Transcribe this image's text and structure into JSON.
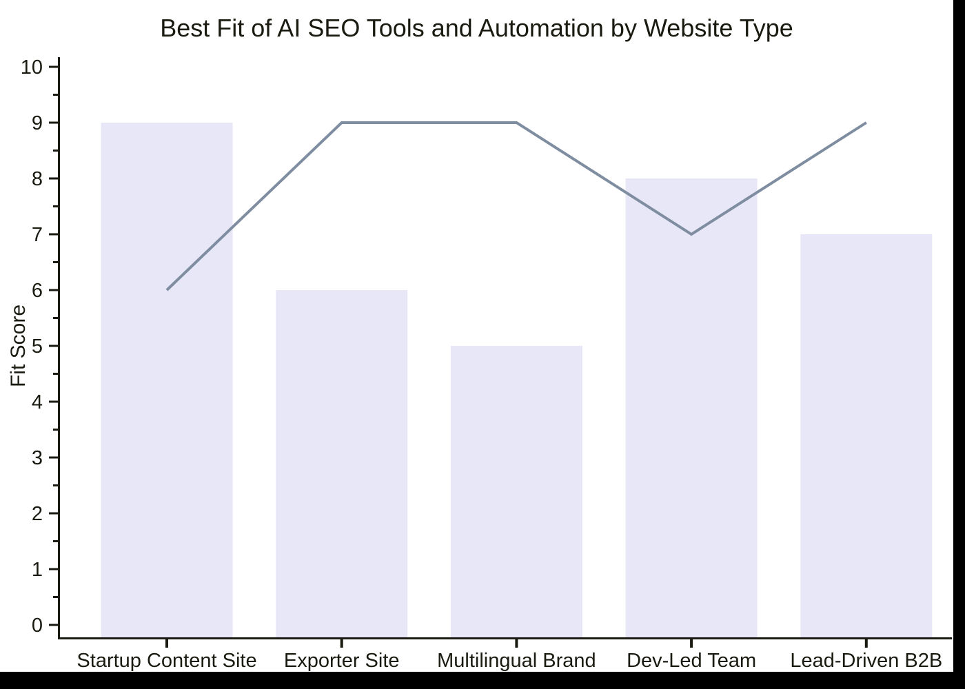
{
  "frame": {
    "outer_background": "#000000",
    "canvas_background": "#ffffff"
  },
  "chart_data": {
    "type": "bar",
    "title": "Best Fit of AI SEO Tools and Automation by Website Type",
    "xlabel": "",
    "ylabel": "Fit Score",
    "categories": [
      "Startup Content Site",
      "Exporter Site",
      "Multilingual Brand",
      "Dev-Led Team",
      "Lead-Driven B2B"
    ],
    "series": [
      {
        "name": "bar-series",
        "type": "bar",
        "values": [
          9,
          6,
          5,
          8,
          7
        ],
        "color": "#e8e7f8"
      },
      {
        "name": "line-series",
        "type": "line",
        "values": [
          6,
          9,
          9,
          7,
          9
        ],
        "color": "#7f8da1"
      }
    ],
    "ylim": [
      0,
      10
    ],
    "yticks": [
      0,
      1,
      2,
      3,
      4,
      5,
      6,
      7,
      8,
      9,
      10
    ],
    "minor_tick_interval": 0.5,
    "grid": "off",
    "legend": "none",
    "axis_color": "#1a1a10"
  }
}
